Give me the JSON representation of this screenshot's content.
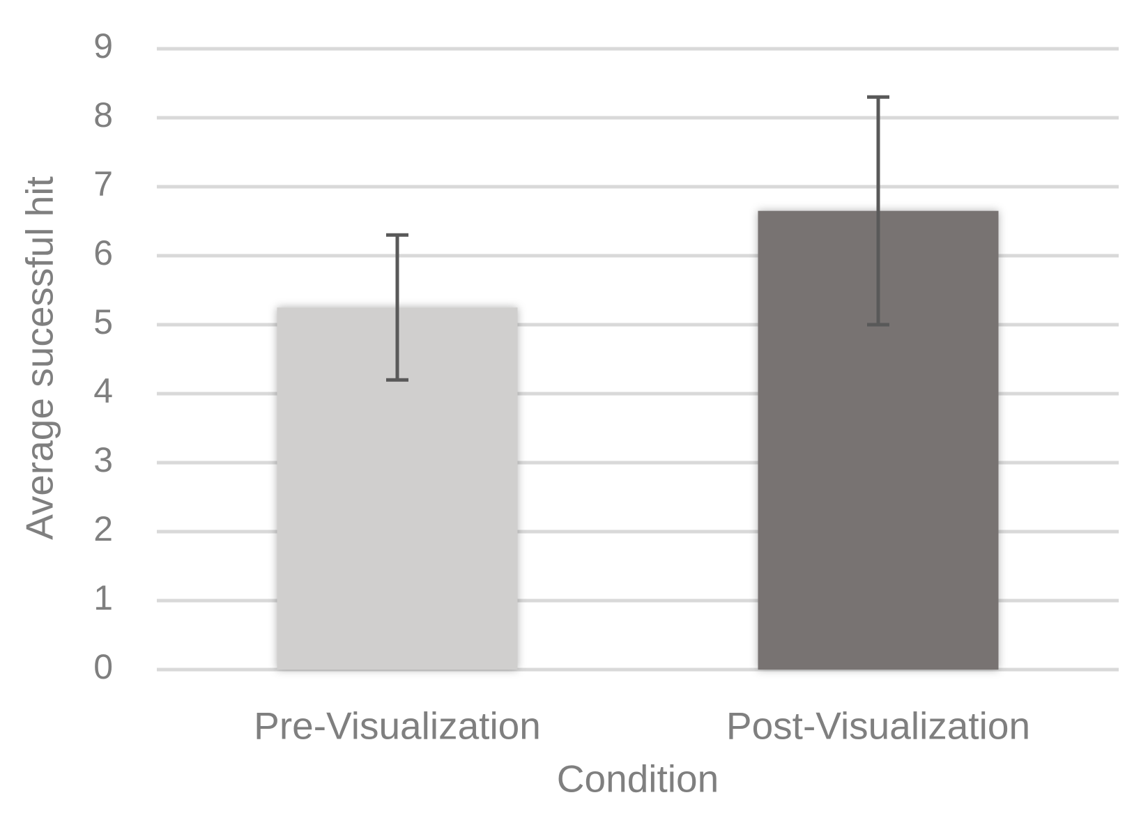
{
  "chart_data": {
    "type": "bar",
    "x_label": "Condition",
    "y_label": "Average sucessful hit",
    "categories": [
      "Pre-Visualization",
      "Post-Visualization"
    ],
    "values": [
      5.25,
      6.65
    ],
    "errors": [
      1.05,
      1.65
    ],
    "colors": [
      "#d0cfce",
      "#787372"
    ],
    "error_color": "#595959",
    "ylim": [
      0,
      9
    ],
    "yticks": [
      0,
      1,
      2,
      3,
      4,
      5,
      6,
      7,
      8,
      9
    ],
    "grid": true,
    "grid_color": "#d9d9d9"
  }
}
